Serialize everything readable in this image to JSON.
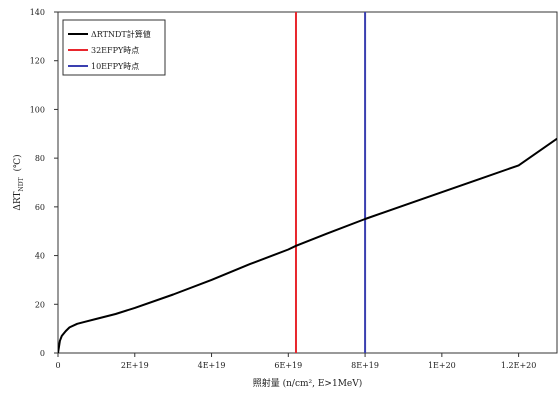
{
  "chart_data": {
    "type": "line",
    "title": "",
    "xlabel": "照射量  (n/cm², E>1MeV)",
    "ylabel": "ΔRT_NDT (℃)",
    "ylabel_parts": {
      "main": "ΔRT",
      "sub": "NDT",
      "unit": "(℃)"
    },
    "xlim": [
      0,
      1.3e+20
    ],
    "ylim": [
      0,
      140
    ],
    "x_ticks": [
      0,
      2e+19,
      4e+19,
      6e+19,
      8e+19,
      1e+20,
      1.2e+20
    ],
    "x_tick_labels": [
      "0",
      "2E+19",
      "4E+19",
      "6E+19",
      "8E+19",
      "1E+20",
      "1.2E+20"
    ],
    "y_ticks": [
      0,
      20,
      40,
      60,
      80,
      100,
      120,
      140
    ],
    "y_tick_labels": [
      "0",
      "20",
      "40",
      "60",
      "80",
      "100",
      "120",
      "140"
    ],
    "grid": false,
    "legend_position": "top-left",
    "series": [
      {
        "name": "ΔRTNDT計算値",
        "color": "#000000",
        "x": [
          0,
          5e+17,
          1e+18,
          2e+18,
          3e+18,
          5e+18,
          7e+18,
          1e+19,
          1.5e+19,
          2e+19,
          3e+19,
          4e+19,
          5e+19,
          6e+19,
          6.2e+19,
          7e+19,
          8e+19,
          9e+19,
          1e+20,
          1.1e+20,
          1.2e+20,
          1.3e+20
        ],
        "y": [
          0,
          5,
          7,
          9,
          10.5,
          12,
          12.8,
          14,
          16,
          18.5,
          24,
          30,
          36.5,
          42.5,
          44,
          49,
          55,
          60.5,
          66,
          71.5,
          77,
          88
        ]
      }
    ],
    "vertical_lines": [
      {
        "name": "32EFPY時点",
        "x": 6.2e+19,
        "color": "#e8262d"
      },
      {
        "name": "10EFPY時点",
        "x": 8e+19,
        "color": "#3a3fb0"
      }
    ]
  }
}
